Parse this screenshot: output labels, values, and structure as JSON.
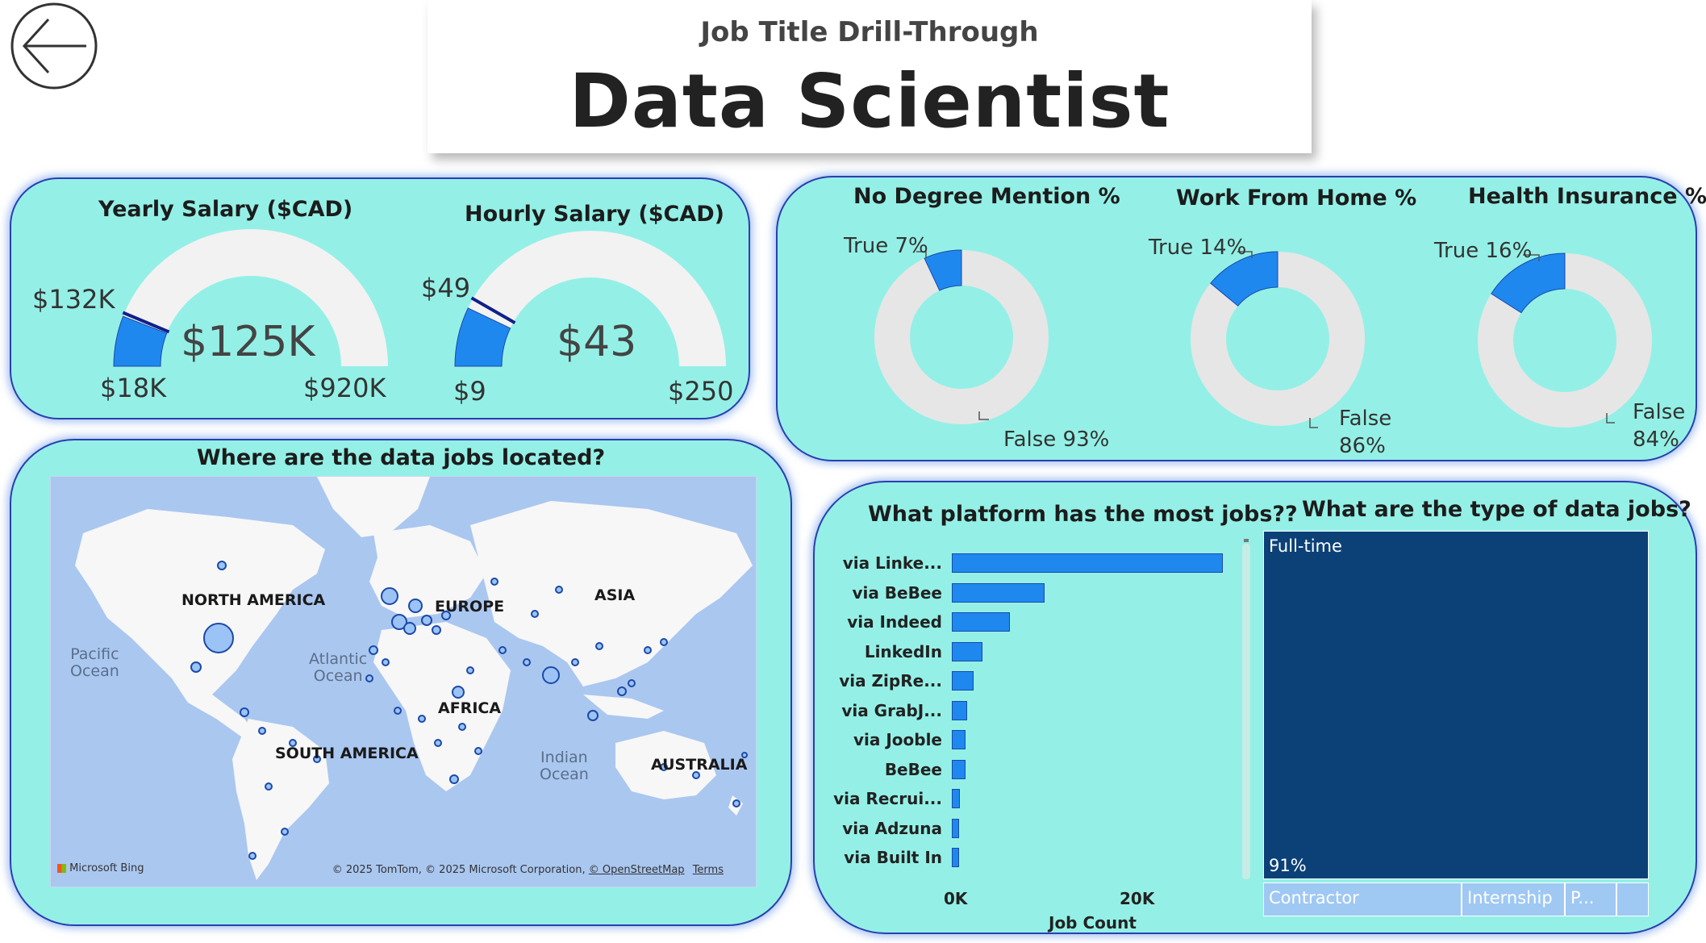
{
  "header": {
    "subtitle": "Job Title Drill-Through",
    "title": "Data Scientist"
  },
  "back_button": {
    "icon": "arrow-left-icon"
  },
  "gauges": [
    {
      "title": "Yearly Salary ($CAD)",
      "value_label": "$125K",
      "min_label": "$18K",
      "max_label": "$920K",
      "target_label": "$132K",
      "value": 125,
      "min": 18,
      "max": 920,
      "target": 132
    },
    {
      "title": "Hourly Salary ($CAD)",
      "value_label": "$43",
      "min_label": "$9",
      "max_label": "$250",
      "target_label": "$49",
      "value": 43,
      "min": 9,
      "max": 250,
      "target": 49
    }
  ],
  "donuts": [
    {
      "title": "No Degree Mention %",
      "true_label": "True 7%",
      "false_label": "False 93%",
      "true_pct": 7
    },
    {
      "title": "Work From Home %",
      "true_label": "True 14%",
      "false_label_line1": "False",
      "false_label_line2": "86%",
      "true_pct": 14
    },
    {
      "title": "Health Insurance %",
      "true_label": "True 16%",
      "false_label_line1": "False",
      "false_label_line2": "84%",
      "true_pct": 16
    }
  ],
  "map": {
    "title": "Where are the data jobs located?",
    "continents": [
      "NORTH AMERICA",
      "EUROPE",
      "ASIA",
      "AFRICA",
      "SOUTH AMERICA",
      "AUSTRALIA"
    ],
    "oceans": [
      {
        "line1": "Pacific",
        "line2": "Ocean"
      },
      {
        "line1": "Atlantic",
        "line2": "Ocean"
      },
      {
        "line1": "Indian",
        "line2": "Ocean"
      }
    ],
    "bing_logo": "Microsoft Bing",
    "copyright": "© 2025 TomTom, © 2025 Microsoft Corporation,",
    "osm_link": "© OpenStreetMap",
    "terms_link": "Terms"
  },
  "chart_data": [
    {
      "type": "bar",
      "orientation": "horizontal",
      "title": "What platform has the most jobs??",
      "xlabel": "Job Count",
      "ylabel": "",
      "x_ticks": [
        "0K",
        "20K"
      ],
      "xlim": [
        0,
        30000
      ],
      "categories": [
        "via Linke...",
        "via BeBee",
        "via Indeed",
        "LinkedIn",
        "via ZipRe...",
        "via GrabJ...",
        "via Jooble",
        "BeBee",
        "via Recrui...",
        "via Adzuna",
        "via Built In"
      ],
      "values": [
        30000,
        10300,
        6400,
        3400,
        2400,
        1700,
        1500,
        1500,
        900,
        800,
        800
      ]
    },
    {
      "type": "treemap",
      "title": "What are the type of data jobs?",
      "categories": [
        "Full-time",
        "Contractor",
        "Internship",
        "P...",
        ""
      ],
      "values": [
        91,
        5,
        2.6,
        1.3,
        0.8
      ],
      "value_labels": [
        "91%",
        "",
        "",
        "",
        ""
      ],
      "colors": [
        "#0c4178",
        "#9fc8f3",
        "#9fc8f3",
        "#9fc8f3",
        "#9fc8f3"
      ]
    }
  ],
  "colors": {
    "panel_bg": "#94f0e6",
    "accent_blue": "#1e88ef",
    "dark_navy": "#0c4178",
    "gauge_track": "#f2f2f2",
    "donut_track": "#e6e6e6"
  }
}
